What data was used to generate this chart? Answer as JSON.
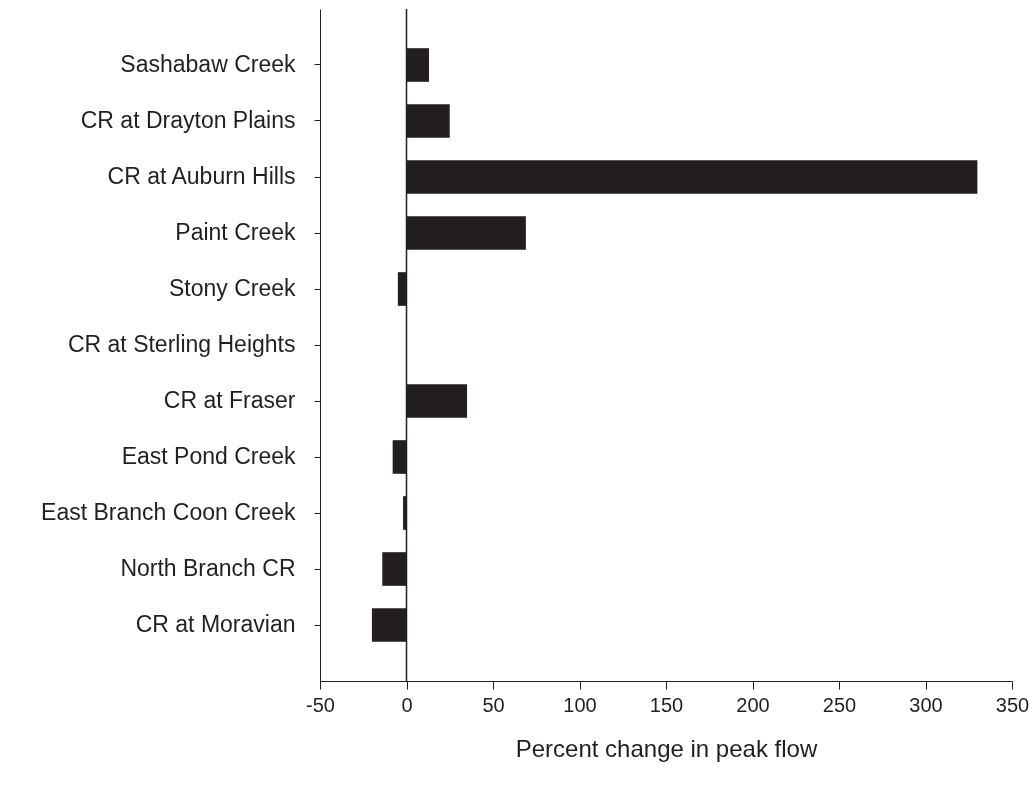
{
  "chart_data": {
    "type": "bar",
    "orientation": "horizontal",
    "xlabel": "Percent change in peak flow",
    "categories": [
      "Sashabaw Creek",
      "CR at Drayton Plains",
      "CR at Auburn Hills",
      "Paint Creek",
      "Stony Creek",
      "CR at Sterling Heights",
      "CR at Fraser",
      "East Pond Creek",
      "East Branch Coon Creek",
      "North Branch CR",
      "CR at Moravian"
    ],
    "values": [
      13,
      25,
      330,
      69,
      -5,
      0,
      35,
      -8,
      -2,
      -14,
      -20
    ],
    "color": "#231f20",
    "xlim": [
      -50,
      350
    ],
    "xticks": [
      -50,
      0,
      50,
      100,
      150,
      200,
      250,
      300,
      350
    ],
    "ref_lines": [
      {
        "axis": "x",
        "value": 0
      }
    ],
    "grid": false
  }
}
